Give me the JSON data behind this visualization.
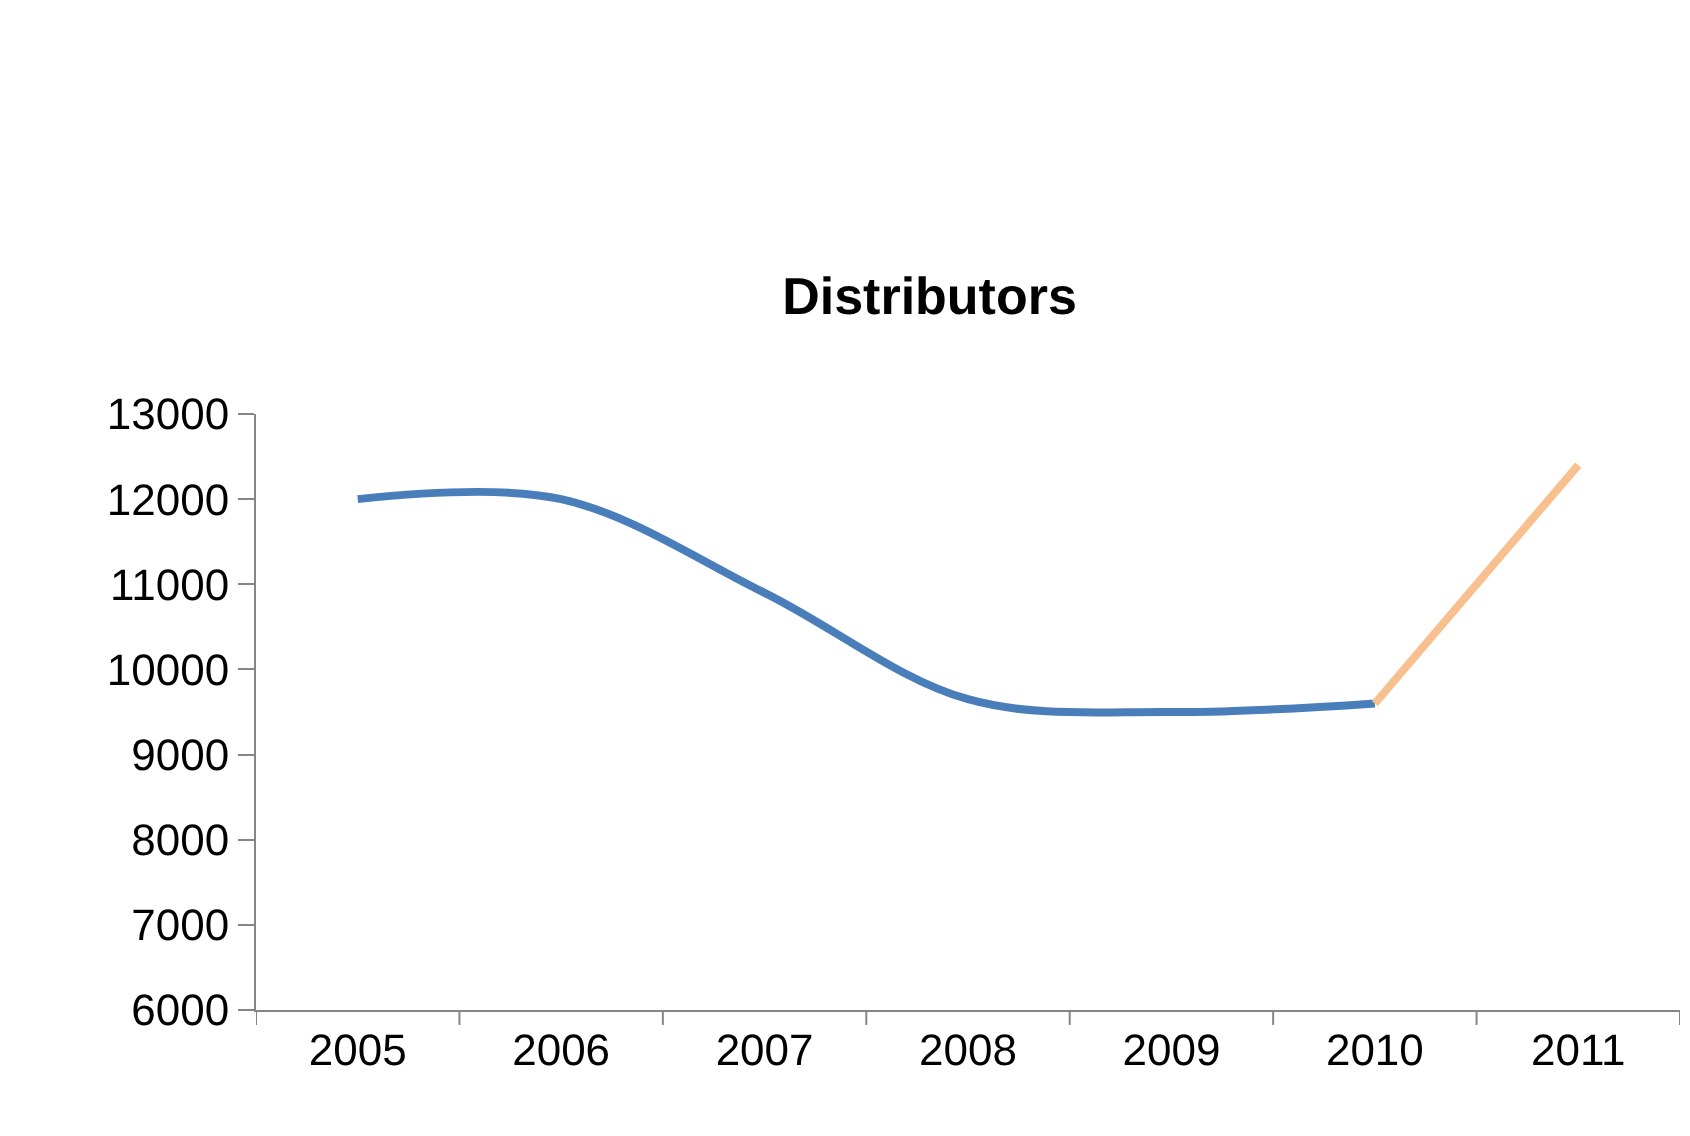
{
  "chart_data": {
    "type": "line",
    "title": "Distributors",
    "categories": [
      "2005",
      "2006",
      "2007",
      "2008",
      "2009",
      "2010",
      "2011"
    ],
    "series": [
      {
        "color": "#4a7ebb",
        "values": [
          12000,
          12000,
          10900,
          9650,
          9500,
          9600,
          null
        ]
      },
      {
        "color": "#f9c08f",
        "values": [
          null,
          null,
          null,
          null,
          null,
          9600,
          12400
        ]
      }
    ],
    "ylim": [
      6000,
      13000
    ],
    "yticks": [
      6000,
      7000,
      8000,
      9000,
      10000,
      11000,
      12000,
      13000
    ],
    "marker": "none",
    "line_style": "solid"
  }
}
